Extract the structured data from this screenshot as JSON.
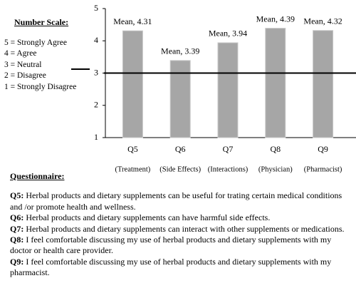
{
  "chart_data": {
    "type": "bar",
    "categories": [
      "Q5",
      "Q6",
      "Q7",
      "Q8",
      "Q9"
    ],
    "category_notes": [
      "(Treatment)",
      "(Side Effects)",
      "(Interactions)",
      "(Physician)",
      "(Pharmacist)"
    ],
    "values": [
      4.31,
      3.39,
      3.94,
      4.39,
      4.32
    ],
    "value_labels": [
      "Mean, 4.31",
      "Mean, 3.39",
      "Mean, 3.94",
      "Mean, 4.39",
      "Mean, 4.32"
    ],
    "color": "#a6a6a6",
    "ylim": [
      1,
      5
    ],
    "yticks": [
      1,
      2,
      3,
      4,
      5
    ],
    "reference_line": {
      "value": 3,
      "color": "#000000"
    }
  },
  "scale_legend": {
    "title": "Number Scale:",
    "items": [
      "5 = Strongly Agree",
      "4 = Agree",
      "3 = Neutral",
      "2 = Disagree",
      "1 = Strongly Disagree"
    ]
  },
  "questionnaire": {
    "title": "Questionnaire:",
    "items": [
      {
        "id": "Q5:",
        "text": "Herbal products and dietary supplements can be useful for trating certain medical conditions and /or promote health and wellness."
      },
      {
        "id": "Q6:",
        "text": "Herbal products and dietary supplements can have harmful side effects."
      },
      {
        "id": "Q7:",
        "text": "Herbal products and dietary supplements can interact with other supplements or medications."
      },
      {
        "id": "Q8:",
        "text": "I feel comfortable discussing my use of herbal products and dietary supplements with my doctor or health care provider."
      },
      {
        "id": "Q9:",
        "text": "I feel comfortable discussing my use of herbal products and dietary supplements with my pharmacist."
      }
    ]
  }
}
